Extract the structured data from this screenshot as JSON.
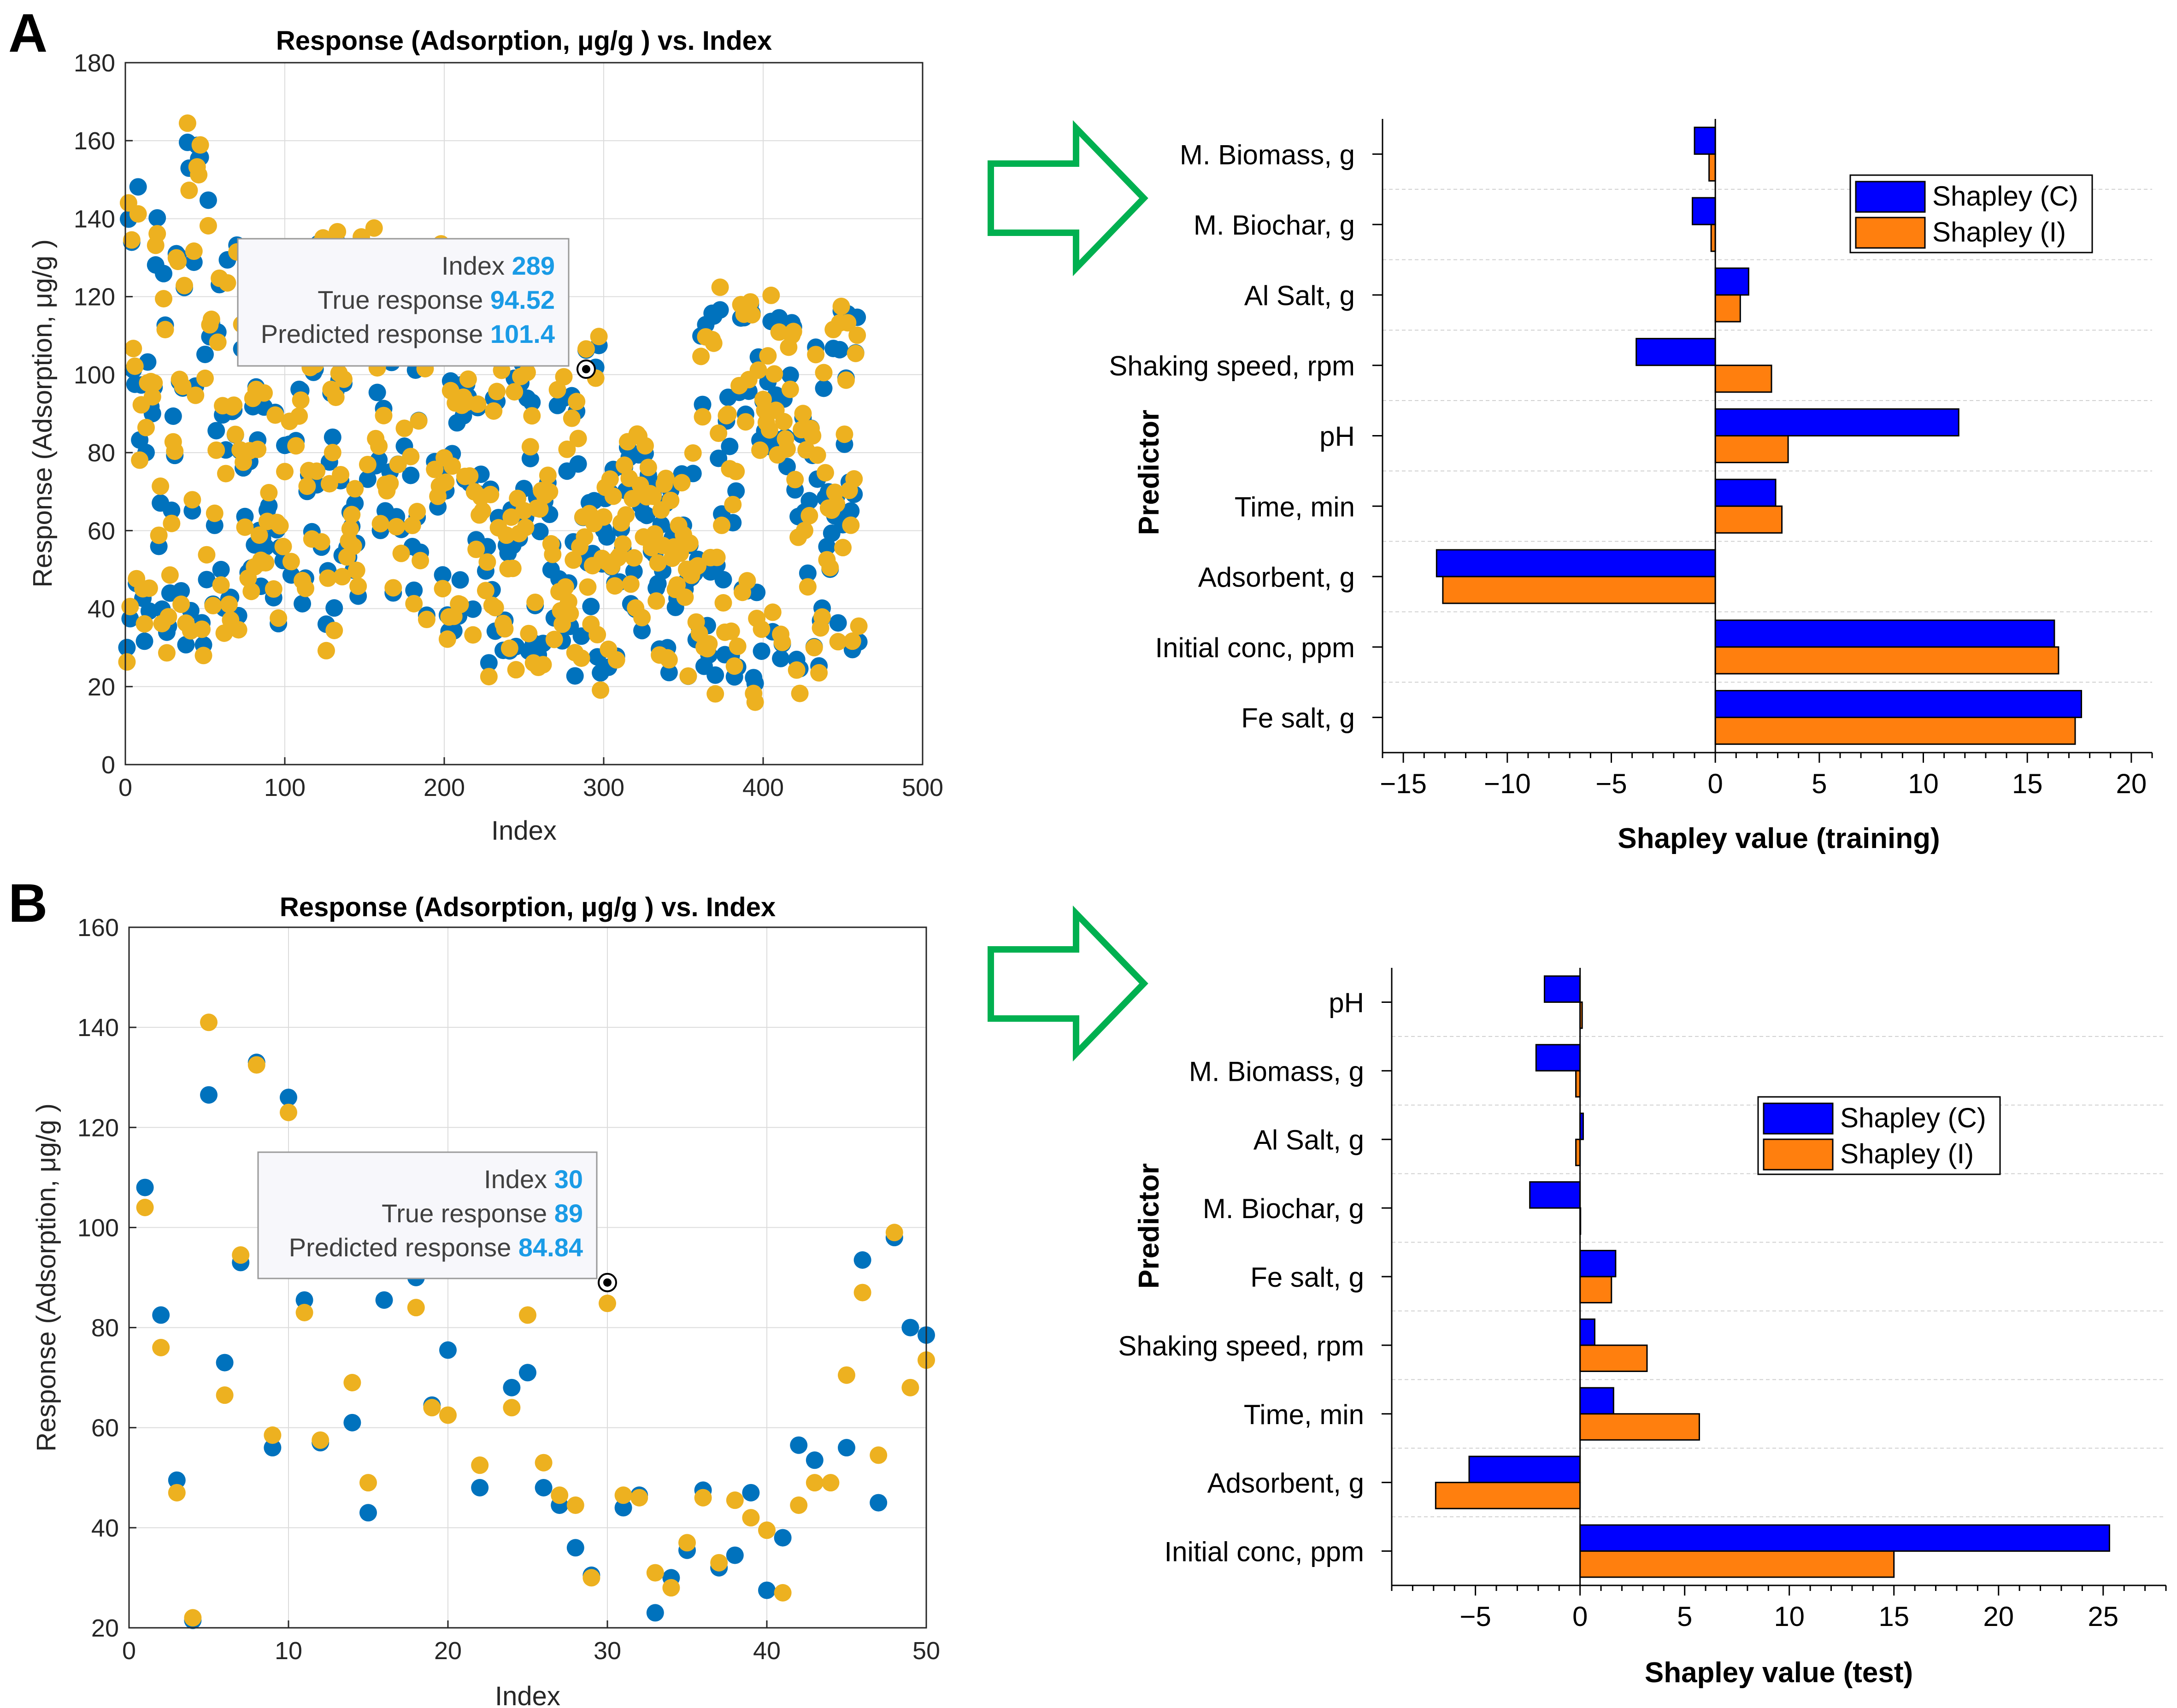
{
  "panels": [
    {
      "label": "A"
    },
    {
      "label": "B"
    }
  ],
  "colors": {
    "true_series": "#0072BD",
    "pred_series": "#EDB120",
    "shap_c": "#0000FF",
    "shap_i": "#FF7F0E",
    "arrow": "#00B050",
    "datatip_value": "#1a9be6"
  },
  "chart_data": [
    {
      "type": "scatter",
      "panel": "A",
      "title": "Response (Adsorption, μg/g ) vs. Index",
      "xlabel": "Index",
      "ylabel": "Response (Adsorption, μg/g )",
      "xlim": [
        0,
        500
      ],
      "ylim": [
        0,
        180
      ],
      "xticks": [
        0,
        100,
        200,
        300,
        400,
        500
      ],
      "yticks": [
        0,
        20,
        40,
        60,
        80,
        100,
        120,
        140,
        160,
        180
      ],
      "grid": true,
      "n_points": 460,
      "series": [
        {
          "key": "true",
          "color": "#0072BD"
        },
        {
          "key": "pred",
          "color": "#EDB120"
        }
      ],
      "datatip": {
        "index_label": "Index",
        "index_value": "289",
        "true_label": "True response",
        "true_value": "94.52",
        "pred_label": "Predicted response",
        "pred_value": "101.4",
        "x": 289,
        "y": 101.4
      }
    },
    {
      "type": "bar",
      "orientation": "horizontal",
      "panel": "A",
      "xlabel": "Shapley value (training)",
      "ylabel": "Predictor",
      "xlim": [
        -16,
        21
      ],
      "xticks": [
        -15,
        -10,
        -5,
        0,
        5,
        10,
        15,
        20
      ],
      "categories": [
        "M. Biomass, g",
        "M. Biochar, g",
        "Al Salt, g",
        "Shaking speed, rpm",
        "pH",
        "Time, min",
        "Adsorbent, g",
        "Initial conc, ppm",
        "Fe salt, g"
      ],
      "series": [
        {
          "name": "Shapley (C)",
          "values": [
            -1.0,
            -1.1,
            1.6,
            -3.8,
            11.7,
            2.9,
            -13.4,
            16.3,
            17.6
          ]
        },
        {
          "name": "Shapley (I)",
          "values": [
            -0.3,
            -0.2,
            1.2,
            2.7,
            3.5,
            3.2,
            -13.1,
            16.5,
            17.3
          ]
        }
      ],
      "legend": "top-right"
    },
    {
      "type": "scatter",
      "panel": "B",
      "title": "Response (Adsorption, μg/g ) vs. Index",
      "xlabel": "Index",
      "ylabel": "Response (Adsorption, μg/g )",
      "xlim": [
        0,
        50
      ],
      "ylim": [
        20,
        160
      ],
      "xticks": [
        0,
        10,
        20,
        30,
        40,
        50
      ],
      "yticks": [
        20,
        40,
        60,
        80,
        100,
        120,
        140,
        160
      ],
      "grid": true,
      "x": [
        1,
        2,
        3,
        4,
        5,
        6,
        7,
        8,
        9,
        10,
        11,
        12,
        13,
        14,
        15,
        16,
        17,
        18,
        19,
        20,
        21,
        22,
        23,
        24,
        25,
        26,
        27,
        28,
        29,
        30,
        31,
        32,
        33,
        34,
        35,
        36,
        37,
        38,
        39,
        40,
        41,
        42,
        43,
        44,
        45,
        46,
        47,
        48,
        49,
        50
      ],
      "series": [
        {
          "key": "true",
          "color": "#0072BD",
          "values": [
            108,
            82.5,
            49.5,
            21.5,
            126.5,
            73,
            93,
            133,
            56,
            126,
            85.5,
            57,
            null,
            61,
            43,
            85.5,
            null,
            90,
            64.5,
            75.5,
            null,
            48,
            null,
            68,
            71,
            48,
            44.5,
            36,
            30.5,
            89,
            44,
            46.5,
            23,
            30,
            35.5,
            47.5,
            32,
            34.5,
            47,
            27.5,
            38,
            56.5,
            53.5,
            null,
            56,
            93.5,
            45,
            98,
            80,
            78.5
          ]
        },
        {
          "key": "pred",
          "color": "#EDB120",
          "values": [
            104,
            76,
            47,
            22,
            141,
            66.5,
            94.5,
            132.5,
            58.5,
            123,
            83,
            57.5,
            null,
            69,
            49,
            null,
            null,
            84,
            64,
            62.5,
            null,
            52.5,
            null,
            64,
            82.5,
            53,
            46.5,
            44.5,
            30,
            84.84,
            46.5,
            46,
            31,
            28,
            37,
            46,
            33,
            45.5,
            42,
            39.5,
            27,
            44.5,
            49,
            49,
            70.5,
            87,
            54.5,
            99,
            68,
            73.5
          ]
        }
      ],
      "datatip": {
        "index_label": "Index",
        "index_value": "30",
        "true_label": "True response",
        "true_value": "89",
        "pred_label": "Predicted response",
        "pred_value": "84.84",
        "x": 30,
        "y": 89
      }
    },
    {
      "type": "bar",
      "orientation": "horizontal",
      "panel": "B",
      "xlabel": "Shapley value (test)",
      "ylabel": "Predictor",
      "xlim": [
        -9,
        28
      ],
      "xticks": [
        -5,
        0,
        5,
        10,
        15,
        20,
        25
      ],
      "categories": [
        "pH",
        "M. Biomass, g",
        "Al Salt, g",
        "M. Biochar, g",
        "Fe salt, g",
        "Shaking speed, rpm",
        "Time, min",
        "Adsorbent, g",
        "Initial conc, ppm"
      ],
      "series": [
        {
          "name": "Shapley (C)",
          "values": [
            -1.7,
            -2.1,
            0.15,
            -2.4,
            1.7,
            0.7,
            1.6,
            -5.3,
            25.3
          ]
        },
        {
          "name": "Shapley (I)",
          "values": [
            0.1,
            -0.2,
            -0.2,
            0.0,
            1.5,
            3.2,
            5.7,
            -6.9,
            15.0
          ]
        }
      ],
      "legend": "top-right"
    }
  ]
}
